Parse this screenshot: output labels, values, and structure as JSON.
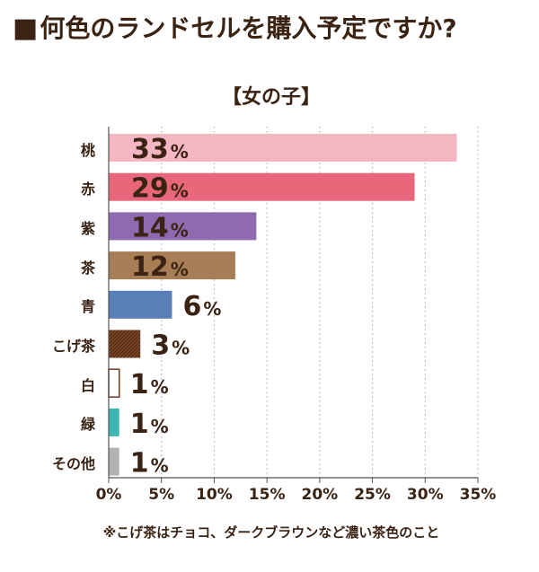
{
  "header": {
    "title": "何色のランドセルを購入予定ですか?",
    "marker": "■"
  },
  "footnote": "※こげ茶はチョコ、ダークブラウンなど濃い茶色のこと",
  "chart_data": {
    "type": "bar",
    "orientation": "horizontal",
    "subtitle": "【女の子】",
    "categories": [
      "桃",
      "赤",
      "紫",
      "茶",
      "青",
      "こげ茶",
      "白",
      "緑",
      "その他"
    ],
    "values": [
      33,
      29,
      14,
      12,
      6,
      3,
      1,
      1,
      1
    ],
    "value_unit": "%",
    "colors": [
      "#f4b6c2",
      "#e9677a",
      "#8e6aae",
      "#a77d56",
      "#5a7fb8",
      "#6b3a1f",
      "#ffffff",
      "#3bb7b3",
      "#b3b3b3"
    ],
    "bar_styles": [
      "solid",
      "solid",
      "solid",
      "solid",
      "solid",
      "hatched",
      "outlined",
      "solid",
      "solid"
    ],
    "xlim": [
      0,
      35
    ],
    "xticks": [
      0,
      5,
      10,
      15,
      20,
      25,
      30,
      35
    ],
    "xtick_labels": [
      "0%",
      "5%",
      "10%",
      "15%",
      "20%",
      "25%",
      "30%",
      "35%"
    ],
    "grid": "vertical-dotted",
    "legend": "none"
  }
}
